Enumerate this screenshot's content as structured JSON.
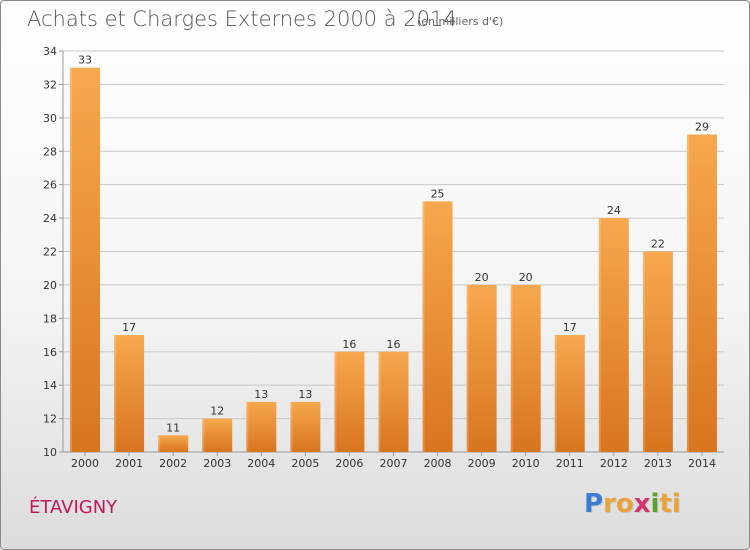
{
  "header": {
    "title": "Achats et Charges Externes 2000 à 2014",
    "subtitle": "(en milliers d'€)"
  },
  "footer": {
    "place": "ÉTAVIGNY",
    "logo_letters": [
      "P",
      "r",
      "o",
      "x",
      "i",
      "t",
      "i"
    ],
    "logo_colors": [
      "#3a7bd5",
      "#e8a33c",
      "#e8a33c",
      "#d6336c",
      "#5aa02c",
      "#e8a33c",
      "#e8a33c"
    ]
  },
  "chart_data": {
    "type": "bar",
    "title": "Achats et Charges Externes 2000 à 2014",
    "subtitle": "(en milliers d'€)",
    "categories": [
      "2000",
      "2001",
      "2002",
      "2003",
      "2004",
      "2005",
      "2006",
      "2007",
      "2008",
      "2009",
      "2010",
      "2011",
      "2012",
      "2013",
      "2014"
    ],
    "values": [
      33,
      17,
      11,
      12,
      13,
      13,
      16,
      16,
      25,
      20,
      20,
      17,
      24,
      22,
      29
    ],
    "ylim": [
      10,
      34
    ],
    "yticks": [
      10,
      12,
      14,
      16,
      18,
      20,
      22,
      24,
      26,
      28,
      30,
      32,
      34
    ],
    "grid": true,
    "colors": {
      "bar_top": "#f7a84e",
      "bar_bottom": "#d8751f",
      "grid": "#c8c8c8",
      "axis": "#999999"
    }
  }
}
